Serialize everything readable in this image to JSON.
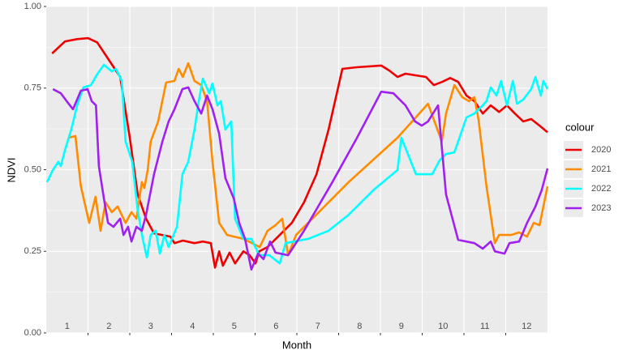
{
  "chart_data": {
    "type": "line",
    "xlabel": "Month",
    "ylabel": "NDVI",
    "xlim": [
      0.5,
      12.5
    ],
    "ylim": [
      0,
      1
    ],
    "xticks": [
      1.5,
      2.5,
      3.5,
      4.5,
      5.5,
      6.5,
      7.5,
      8.5,
      9.5,
      10.5,
      11.5
    ],
    "month_labels": [
      1,
      2,
      3,
      4,
      5,
      6,
      7,
      8,
      9,
      10,
      11,
      12
    ],
    "yticks": [
      {
        "value": 0,
        "label": "0.00"
      },
      {
        "value": 0.25,
        "label": "0.25"
      },
      {
        "value": 0.5,
        "label": "0.50"
      },
      {
        "value": 0.75,
        "label": "0.75"
      },
      {
        "value": 1,
        "label": "1.00"
      }
    ],
    "yminor": [
      0.125,
      0.375,
      0.625,
      0.875
    ],
    "grid": true,
    "legend_title": "colour",
    "legend_position": "right",
    "series": [
      {
        "name": "2020",
        "color": "#ee0000",
        "x": [
          0.64,
          0.95,
          1.24,
          1.5,
          1.72,
          2.01,
          2.27,
          2.5,
          2.69,
          2.89,
          3.08,
          3.47,
          3.57,
          3.77,
          4.05,
          4.25,
          4.44,
          4.54,
          4.64,
          4.73,
          4.89,
          5.02,
          5.22,
          5.37,
          5.51,
          5.6,
          5.8,
          6.09,
          6.38,
          6.67,
          6.97,
          7.26,
          7.59,
          7.94,
          8.52,
          8.71,
          8.91,
          9.1,
          9.59,
          9.78,
          9.98,
          10.17,
          10.36,
          10.56,
          10.75,
          10.95,
          11.14,
          11.34,
          11.53,
          11.72,
          11.92,
          12.11,
          12.31,
          12.5
        ],
        "values": [
          0.856,
          0.893,
          0.9,
          0.903,
          0.89,
          0.834,
          0.784,
          0.598,
          0.424,
          0.35,
          0.305,
          0.295,
          0.275,
          0.283,
          0.275,
          0.28,
          0.275,
          0.2,
          0.25,
          0.206,
          0.246,
          0.213,
          0.25,
          0.238,
          0.213,
          0.25,
          0.263,
          0.3,
          0.337,
          0.4,
          0.486,
          0.623,
          0.809,
          0.814,
          0.819,
          0.804,
          0.784,
          0.794,
          0.784,
          0.759,
          0.769,
          0.781,
          0.769,
          0.727,
          0.71,
          0.672,
          0.697,
          0.677,
          0.697,
          0.672,
          0.648,
          0.655,
          0.635,
          0.615
        ]
      },
      {
        "name": "2021",
        "color": "#ff8c00",
        "x": [
          1.04,
          1.2,
          1.33,
          1.53,
          1.68,
          1.8,
          1.92,
          2.07,
          2.21,
          2.4,
          2.54,
          2.66,
          2.79,
          2.85,
          2.93,
          3.0,
          3.18,
          3.37,
          3.57,
          3.67,
          3.77,
          3.9,
          4.05,
          4.21,
          4.35,
          4.48,
          4.64,
          4.83,
          5.22,
          5.61,
          5.8,
          5.99,
          6.15,
          6.29,
          6.48,
          6.77,
          7.74,
          8.91,
          9.64,
          9.97,
          10.07,
          10.27,
          10.46,
          10.62,
          10.75,
          10.85,
          11.04,
          11.24,
          11.34,
          11.63,
          11.82,
          12.01,
          12.17,
          12.31,
          12.5
        ],
        "values": [
          0.598,
          0.603,
          0.449,
          0.337,
          0.417,
          0.313,
          0.4,
          0.37,
          0.387,
          0.337,
          0.37,
          0.35,
          0.462,
          0.444,
          0.499,
          0.586,
          0.648,
          0.767,
          0.772,
          0.809,
          0.784,
          0.826,
          0.772,
          0.759,
          0.71,
          0.524,
          0.337,
          0.3,
          0.288,
          0.263,
          0.313,
          0.33,
          0.35,
          0.238,
          0.3,
          0.337,
          0.462,
          0.598,
          0.702,
          0.586,
          0.672,
          0.759,
          0.722,
          0.71,
          0.722,
          0.653,
          0.449,
          0.275,
          0.3,
          0.3,
          0.308,
          0.295,
          0.337,
          0.33,
          0.449
        ]
      },
      {
        "name": "2022",
        "color": "#00ffff",
        "x": [
          0.52,
          0.66,
          0.79,
          0.85,
          0.95,
          1.1,
          1.24,
          1.39,
          1.57,
          1.72,
          1.88,
          2.07,
          2.17,
          2.31,
          2.4,
          2.56,
          2.69,
          2.81,
          2.91,
          3.0,
          3.12,
          3.22,
          3.33,
          3.43,
          3.51,
          3.63,
          3.76,
          3.9,
          4.05,
          4.15,
          4.25,
          4.4,
          4.48,
          4.6,
          4.68,
          4.79,
          4.93,
          5.02,
          5.22,
          5.41,
          5.6,
          5.84,
          6.09,
          6.23,
          6.77,
          7.26,
          7.74,
          8.33,
          8.91,
          9.0,
          9.35,
          9.74,
          9.92,
          10.07,
          10.27,
          10.56,
          10.75,
          10.95,
          11.04,
          11.14,
          11.28,
          11.39,
          11.53,
          11.67,
          11.77,
          11.92,
          12.11,
          12.21,
          12.34,
          12.4,
          12.5
        ],
        "values": [
          0.462,
          0.499,
          0.524,
          0.511,
          0.561,
          0.623,
          0.697,
          0.752,
          0.759,
          0.792,
          0.821,
          0.801,
          0.809,
          0.772,
          0.586,
          0.524,
          0.375,
          0.288,
          0.231,
          0.3,
          0.313,
          0.243,
          0.3,
          0.263,
          0.288,
          0.325,
          0.486,
          0.524,
          0.623,
          0.71,
          0.779,
          0.734,
          0.764,
          0.697,
          0.71,
          0.623,
          0.648,
          0.35,
          0.288,
          0.288,
          0.238,
          0.238,
          0.213,
          0.275,
          0.288,
          0.313,
          0.362,
          0.437,
          0.499,
          0.598,
          0.486,
          0.486,
          0.529,
          0.548,
          0.553,
          0.66,
          0.672,
          0.697,
          0.71,
          0.752,
          0.727,
          0.772,
          0.697,
          0.772,
          0.702,
          0.715,
          0.747,
          0.784,
          0.727,
          0.772,
          0.747
        ]
      },
      {
        "name": "2023",
        "color": "#a020f0",
        "x": [
          0.66,
          0.85,
          0.99,
          1.14,
          1.33,
          1.49,
          1.59,
          1.69,
          1.76,
          1.88,
          1.98,
          2.11,
          2.27,
          2.35,
          2.46,
          2.54,
          2.66,
          2.79,
          2.89,
          3.08,
          3.28,
          3.43,
          3.57,
          3.76,
          3.9,
          4.05,
          4.21,
          4.35,
          4.48,
          4.64,
          4.79,
          4.99,
          5.12,
          5.26,
          5.41,
          5.57,
          5.7,
          5.86,
          5.99,
          6.29,
          6.67,
          7.35,
          7.94,
          8.52,
          8.81,
          9.1,
          9.33,
          9.49,
          9.64,
          9.88,
          10.07,
          10.36,
          10.75,
          10.95,
          11.14,
          11.24,
          11.47,
          11.59,
          11.82,
          12.01,
          12.21,
          12.36,
          12.5
        ],
        "values": [
          0.747,
          0.734,
          0.71,
          0.685,
          0.742,
          0.747,
          0.71,
          0.697,
          0.511,
          0.412,
          0.337,
          0.325,
          0.35,
          0.3,
          0.325,
          0.28,
          0.325,
          0.313,
          0.362,
          0.486,
          0.586,
          0.648,
          0.685,
          0.747,
          0.752,
          0.71,
          0.672,
          0.727,
          0.685,
          0.61,
          0.474,
          0.412,
          0.337,
          0.288,
          0.194,
          0.243,
          0.226,
          0.28,
          0.246,
          0.238,
          0.313,
          0.462,
          0.598,
          0.739,
          0.734,
          0.697,
          0.648,
          0.635,
          0.648,
          0.697,
          0.424,
          0.285,
          0.275,
          0.258,
          0.28,
          0.25,
          0.243,
          0.275,
          0.28,
          0.337,
          0.387,
          0.437,
          0.504
        ]
      }
    ]
  }
}
